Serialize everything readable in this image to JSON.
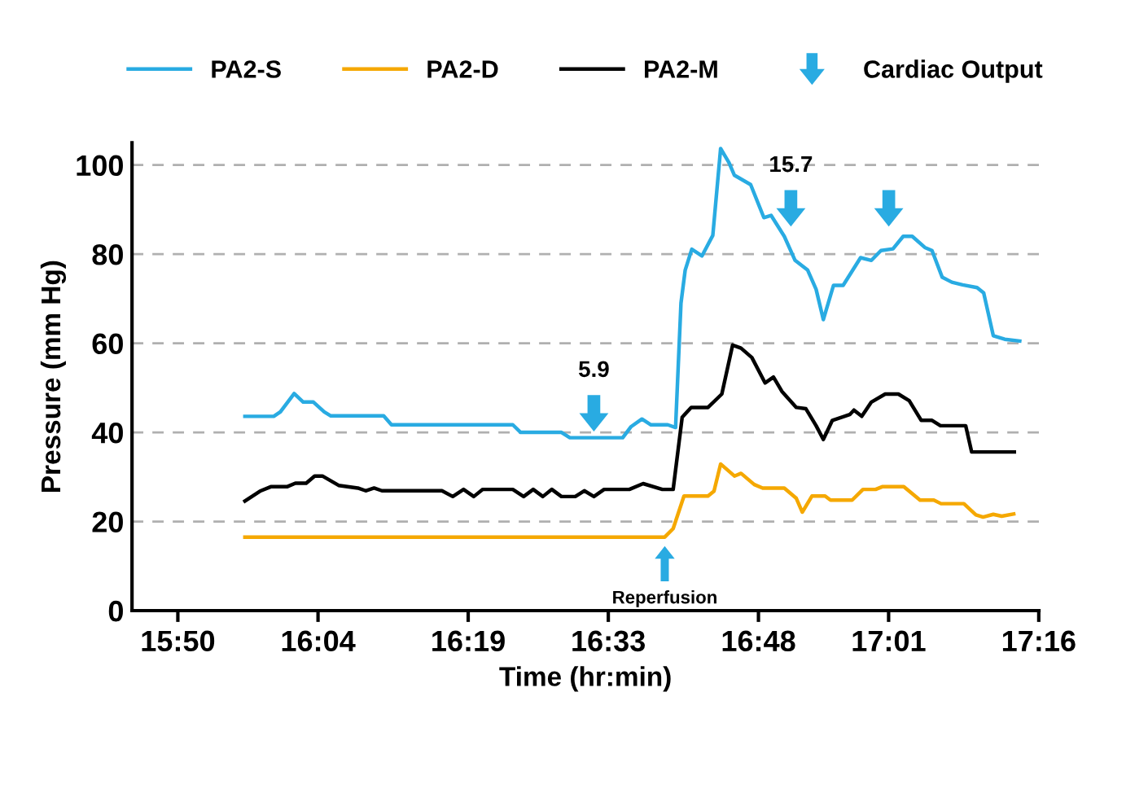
{
  "chart_data": {
    "type": "line",
    "xlabel": "Time (hr:min)",
    "ylabel": "Pressure (mm Hg)",
    "xlim": [
      15.757,
      17.267
    ],
    "ylim": [
      0,
      105
    ],
    "xticks": [
      {
        "value": 15.8333,
        "label": "15:50"
      },
      {
        "value": 16.0667,
        "label": "16:04"
      },
      {
        "value": 16.3167,
        "label": "16:19"
      },
      {
        "value": 16.55,
        "label": "16:33"
      },
      {
        "value": 16.8,
        "label": "16:48"
      },
      {
        "value": 17.0167,
        "label": "17:01"
      },
      {
        "value": 17.2667,
        "label": "17:16"
      }
    ],
    "yticks": [
      0,
      20,
      40,
      60,
      80,
      100
    ],
    "grid": "y",
    "legend": "top",
    "line_style": "solid",
    "series": [
      {
        "name": "PA2-S",
        "color": "#29abe2",
        "x": [
          15.945,
          15.993,
          16.004,
          16.027,
          16.042,
          16.059,
          16.077,
          16.088,
          16.176,
          16.189,
          16.391,
          16.404,
          16.472,
          16.486,
          16.574,
          16.588,
          16.606,
          16.621,
          16.649,
          16.662,
          16.671,
          16.678,
          16.689,
          16.706,
          16.724,
          16.737,
          16.751,
          16.76,
          16.787,
          16.809,
          16.821,
          16.843,
          16.861,
          16.882,
          16.896,
          16.908,
          16.925,
          16.941,
          16.97,
          16.988,
          17.004,
          17.024,
          17.041,
          17.056,
          17.077,
          17.089,
          17.106,
          17.122,
          17.14,
          17.164,
          17.175,
          17.191,
          17.21,
          17.235
        ],
        "values": [
          43.6,
          43.6,
          44.6,
          48.7,
          46.8,
          46.8,
          44.6,
          43.7,
          43.7,
          41.7,
          41.7,
          40.0,
          40.0,
          38.8,
          38.8,
          41.3,
          43.0,
          41.7,
          41.7,
          41.1,
          69.0,
          76.4,
          81.1,
          79.6,
          84.2,
          103.7,
          100.5,
          97.7,
          95.6,
          88.2,
          88.7,
          84.0,
          78.6,
          76.4,
          72.1,
          65.3,
          73.0,
          73.0,
          79.2,
          78.6,
          80.8,
          81.2,
          84.0,
          84.0,
          81.5,
          80.8,
          74.8,
          73.7,
          73.1,
          72.5,
          71.3,
          61.7,
          60.9,
          60.5
        ]
      },
      {
        "name": "PA2-D",
        "color": "#f5a800",
        "x": [
          15.945,
          16.644,
          16.658,
          16.676,
          16.716,
          16.726,
          16.737,
          16.76,
          16.771,
          16.793,
          16.807,
          16.843,
          16.863,
          16.873,
          16.889,
          16.911,
          16.92,
          16.956,
          16.974,
          16.995,
          17.006,
          17.042,
          17.069,
          17.092,
          17.104,
          17.142,
          17.162,
          17.174,
          17.191,
          17.205,
          17.225
        ],
        "values": [
          16.5,
          16.5,
          18.4,
          25.7,
          25.7,
          26.8,
          32.9,
          30.2,
          30.8,
          28.3,
          27.5,
          27.5,
          25.2,
          22.1,
          25.7,
          25.7,
          24.8,
          24.8,
          27.2,
          27.2,
          27.8,
          27.8,
          24.8,
          24.8,
          24.0,
          24.0,
          21.5,
          21.0,
          21.6,
          21.2,
          21.7
        ]
      },
      {
        "name": "PA2-M",
        "color": "#000000",
        "x": [
          15.945,
          15.97,
          15.988,
          16.015,
          16.029,
          16.047,
          16.061,
          16.074,
          16.101,
          16.133,
          16.146,
          16.16,
          16.173,
          16.273,
          16.291,
          16.309,
          16.326,
          16.341,
          16.391,
          16.409,
          16.425,
          16.441,
          16.456,
          16.472,
          16.495,
          16.51,
          16.526,
          16.543,
          16.585,
          16.608,
          16.64,
          16.658,
          16.673,
          16.688,
          16.716,
          16.739,
          16.757,
          16.771,
          16.789,
          16.811,
          16.825,
          16.839,
          16.863,
          16.879,
          16.896,
          16.908,
          16.923,
          16.952,
          16.959,
          16.972,
          16.988,
          17.011,
          17.033,
          17.051,
          17.071,
          17.089,
          17.103,
          17.145,
          17.155,
          17.226
        ],
        "values": [
          24.6,
          26.8,
          27.8,
          27.8,
          28.6,
          28.6,
          30.2,
          30.2,
          28.1,
          27.5,
          26.9,
          27.5,
          26.9,
          26.9,
          25.6,
          27.2,
          25.6,
          27.2,
          27.2,
          25.6,
          27.2,
          25.6,
          27.2,
          25.6,
          25.6,
          26.9,
          25.6,
          27.2,
          27.2,
          28.5,
          27.2,
          27.2,
          43.4,
          45.6,
          45.6,
          48.6,
          59.6,
          58.9,
          56.8,
          51.1,
          52.4,
          49.2,
          45.6,
          45.3,
          41.5,
          38.4,
          42.7,
          44.0,
          45.0,
          43.6,
          46.8,
          48.6,
          48.6,
          47.1,
          42.7,
          42.7,
          41.5,
          41.5,
          35.6,
          35.6
        ]
      },
      {
        "name": "Cardiac Output",
        "type": "scatter",
        "marker": "triangle",
        "color": "#29abe2",
        "x": [
          16.526,
          16.854,
          17.017
        ],
        "values": [
          44.3,
          90.3,
          90.3
        ]
      }
    ],
    "annotations": [
      {
        "text": "5.9",
        "x": 16.526,
        "y": 44.3
      },
      {
        "text": "15.7",
        "x": 16.854,
        "y": 90.3
      },
      {
        "text": "Reperfusion",
        "x": 16.644,
        "y": 16.5
      }
    ]
  }
}
